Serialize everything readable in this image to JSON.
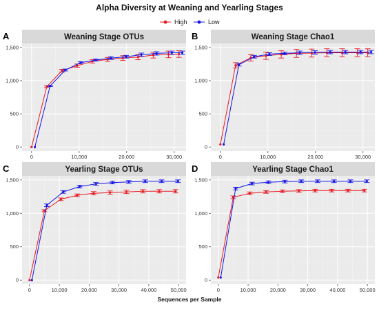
{
  "title": "Alpha Diversity at Weaning and Yearling Stages",
  "xlabel": "Sequences per Sample",
  "legend": [
    {
      "label": "High",
      "color": "#e8191f"
    },
    {
      "label": "Low",
      "color": "#1414e6"
    }
  ],
  "chart_data": [
    {
      "type": "line",
      "panel": "A",
      "title": "Weaning Stage OTUs",
      "xlim": [
        -2000,
        32500
      ],
      "ylim": [
        -60,
        1560
      ],
      "xticks": [
        0,
        10000,
        20000,
        30000
      ],
      "xtick_labels": [
        "0",
        "10,000",
        "20,000",
        "30,000"
      ],
      "yticks": [
        0,
        500,
        1000,
        1500
      ],
      "ytick_labels": [
        "0",
        "500",
        "1,000",
        "1,500"
      ],
      "series": [
        {
          "name": "High",
          "x": [
            0,
            3200,
            6400,
            9600,
            12800,
            16000,
            19200,
            22400,
            25600,
            28800,
            31000
          ],
          "y": [
            0,
            910,
            1150,
            1225,
            1290,
            1320,
            1340,
            1355,
            1385,
            1395,
            1400
          ],
          "err": [
            0,
            15,
            20,
            25,
            25,
            30,
            35,
            40,
            45,
            50,
            50
          ]
        },
        {
          "name": "Low",
          "x": [
            700,
            3900,
            7100,
            10300,
            13500,
            16700,
            19900,
            23100,
            26300,
            29500,
            31700
          ],
          "y": [
            0,
            920,
            1160,
            1270,
            1310,
            1340,
            1360,
            1390,
            1410,
            1420,
            1420
          ],
          "err": [
            0,
            10,
            15,
            15,
            15,
            20,
            20,
            25,
            25,
            25,
            25
          ]
        }
      ]
    },
    {
      "type": "line",
      "panel": "B",
      "title": "Weaning Stage Chao1",
      "xlim": [
        -2000,
        32500
      ],
      "ylim": [
        -60,
        1560
      ],
      "xticks": [
        0,
        10000,
        20000,
        30000
      ],
      "xtick_labels": [
        "0",
        "10,000",
        "20,000",
        "30,000"
      ],
      "yticks": [
        0,
        500,
        1000,
        1500
      ],
      "ytick_labels": [
        "0",
        "500",
        "1,000",
        "1,500"
      ],
      "series": [
        {
          "name": "High",
          "x": [
            0,
            3200,
            6400,
            9600,
            12800,
            16000,
            19200,
            22400,
            25600,
            28800,
            31000
          ],
          "y": [
            40,
            1230,
            1345,
            1375,
            1395,
            1410,
            1415,
            1420,
            1420,
            1420,
            1420
          ],
          "err": [
            0,
            40,
            50,
            55,
            55,
            60,
            60,
            60,
            60,
            60,
            60
          ]
        },
        {
          "name": "Low",
          "x": [
            700,
            3900,
            7100,
            10300,
            13500,
            16700,
            19900,
            23100,
            26300,
            29500,
            31700
          ],
          "y": [
            40,
            1240,
            1360,
            1400,
            1410,
            1420,
            1425,
            1430,
            1430,
            1430,
            1430
          ],
          "err": [
            0,
            20,
            20,
            20,
            20,
            25,
            25,
            25,
            25,
            25,
            25
          ]
        }
      ]
    },
    {
      "type": "line",
      "panel": "C",
      "title": "Yearling Stage OTUs",
      "xlim": [
        -2500,
        52500
      ],
      "ylim": [
        -60,
        1560
      ],
      "xticks": [
        0,
        10000,
        20000,
        30000,
        40000,
        50000
      ],
      "xtick_labels": [
        "0",
        "10,000",
        "20,000",
        "30,000",
        "40,000",
        "50,000"
      ],
      "yticks": [
        0,
        500,
        1000,
        1500
      ],
      "ytick_labels": [
        "0",
        "500",
        "1,000",
        "1,500"
      ],
      "series": [
        {
          "name": "High",
          "x": [
            0,
            5000,
            10500,
            16000,
            21500,
            27000,
            32500,
            38000,
            43500,
            49000
          ],
          "y": [
            0,
            1040,
            1210,
            1270,
            1300,
            1310,
            1320,
            1330,
            1330,
            1330
          ],
          "err": [
            0,
            15,
            20,
            20,
            25,
            25,
            25,
            25,
            25,
            25
          ]
        },
        {
          "name": "Low",
          "x": [
            800,
            5800,
            11300,
            16800,
            22300,
            27800,
            33300,
            38800,
            44300,
            49800
          ],
          "y": [
            0,
            1120,
            1320,
            1400,
            1440,
            1460,
            1470,
            1480,
            1480,
            1480
          ],
          "err": [
            0,
            20,
            20,
            20,
            20,
            20,
            20,
            20,
            20,
            20
          ]
        }
      ]
    },
    {
      "type": "line",
      "panel": "D",
      "title": "Yearling Stage Chao1",
      "xlim": [
        -2500,
        52500
      ],
      "ylim": [
        -60,
        1560
      ],
      "xticks": [
        0,
        10000,
        20000,
        30000,
        40000,
        50000
      ],
      "xtick_labels": [
        "0",
        "10,000",
        "20,000",
        "30,000",
        "40,000",
        "50,000"
      ],
      "yticks": [
        0,
        500,
        1000,
        1500
      ],
      "ytick_labels": [
        "0",
        "500",
        "1,000",
        "1,500"
      ],
      "series": [
        {
          "name": "High",
          "x": [
            0,
            5000,
            10500,
            16000,
            21500,
            27000,
            32500,
            38000,
            43500,
            49000
          ],
          "y": [
            40,
            1240,
            1300,
            1320,
            1330,
            1335,
            1340,
            1340,
            1340,
            1340
          ],
          "err": [
            0,
            20,
            20,
            20,
            20,
            20,
            20,
            20,
            20,
            20
          ]
        },
        {
          "name": "Low",
          "x": [
            800,
            5800,
            11300,
            16800,
            22300,
            27800,
            33300,
            38800,
            44300,
            49800
          ],
          "y": [
            40,
            1370,
            1445,
            1465,
            1475,
            1480,
            1480,
            1480,
            1480,
            1480
          ],
          "err": [
            0,
            20,
            20,
            20,
            20,
            20,
            20,
            20,
            20,
            20
          ]
        }
      ]
    }
  ]
}
